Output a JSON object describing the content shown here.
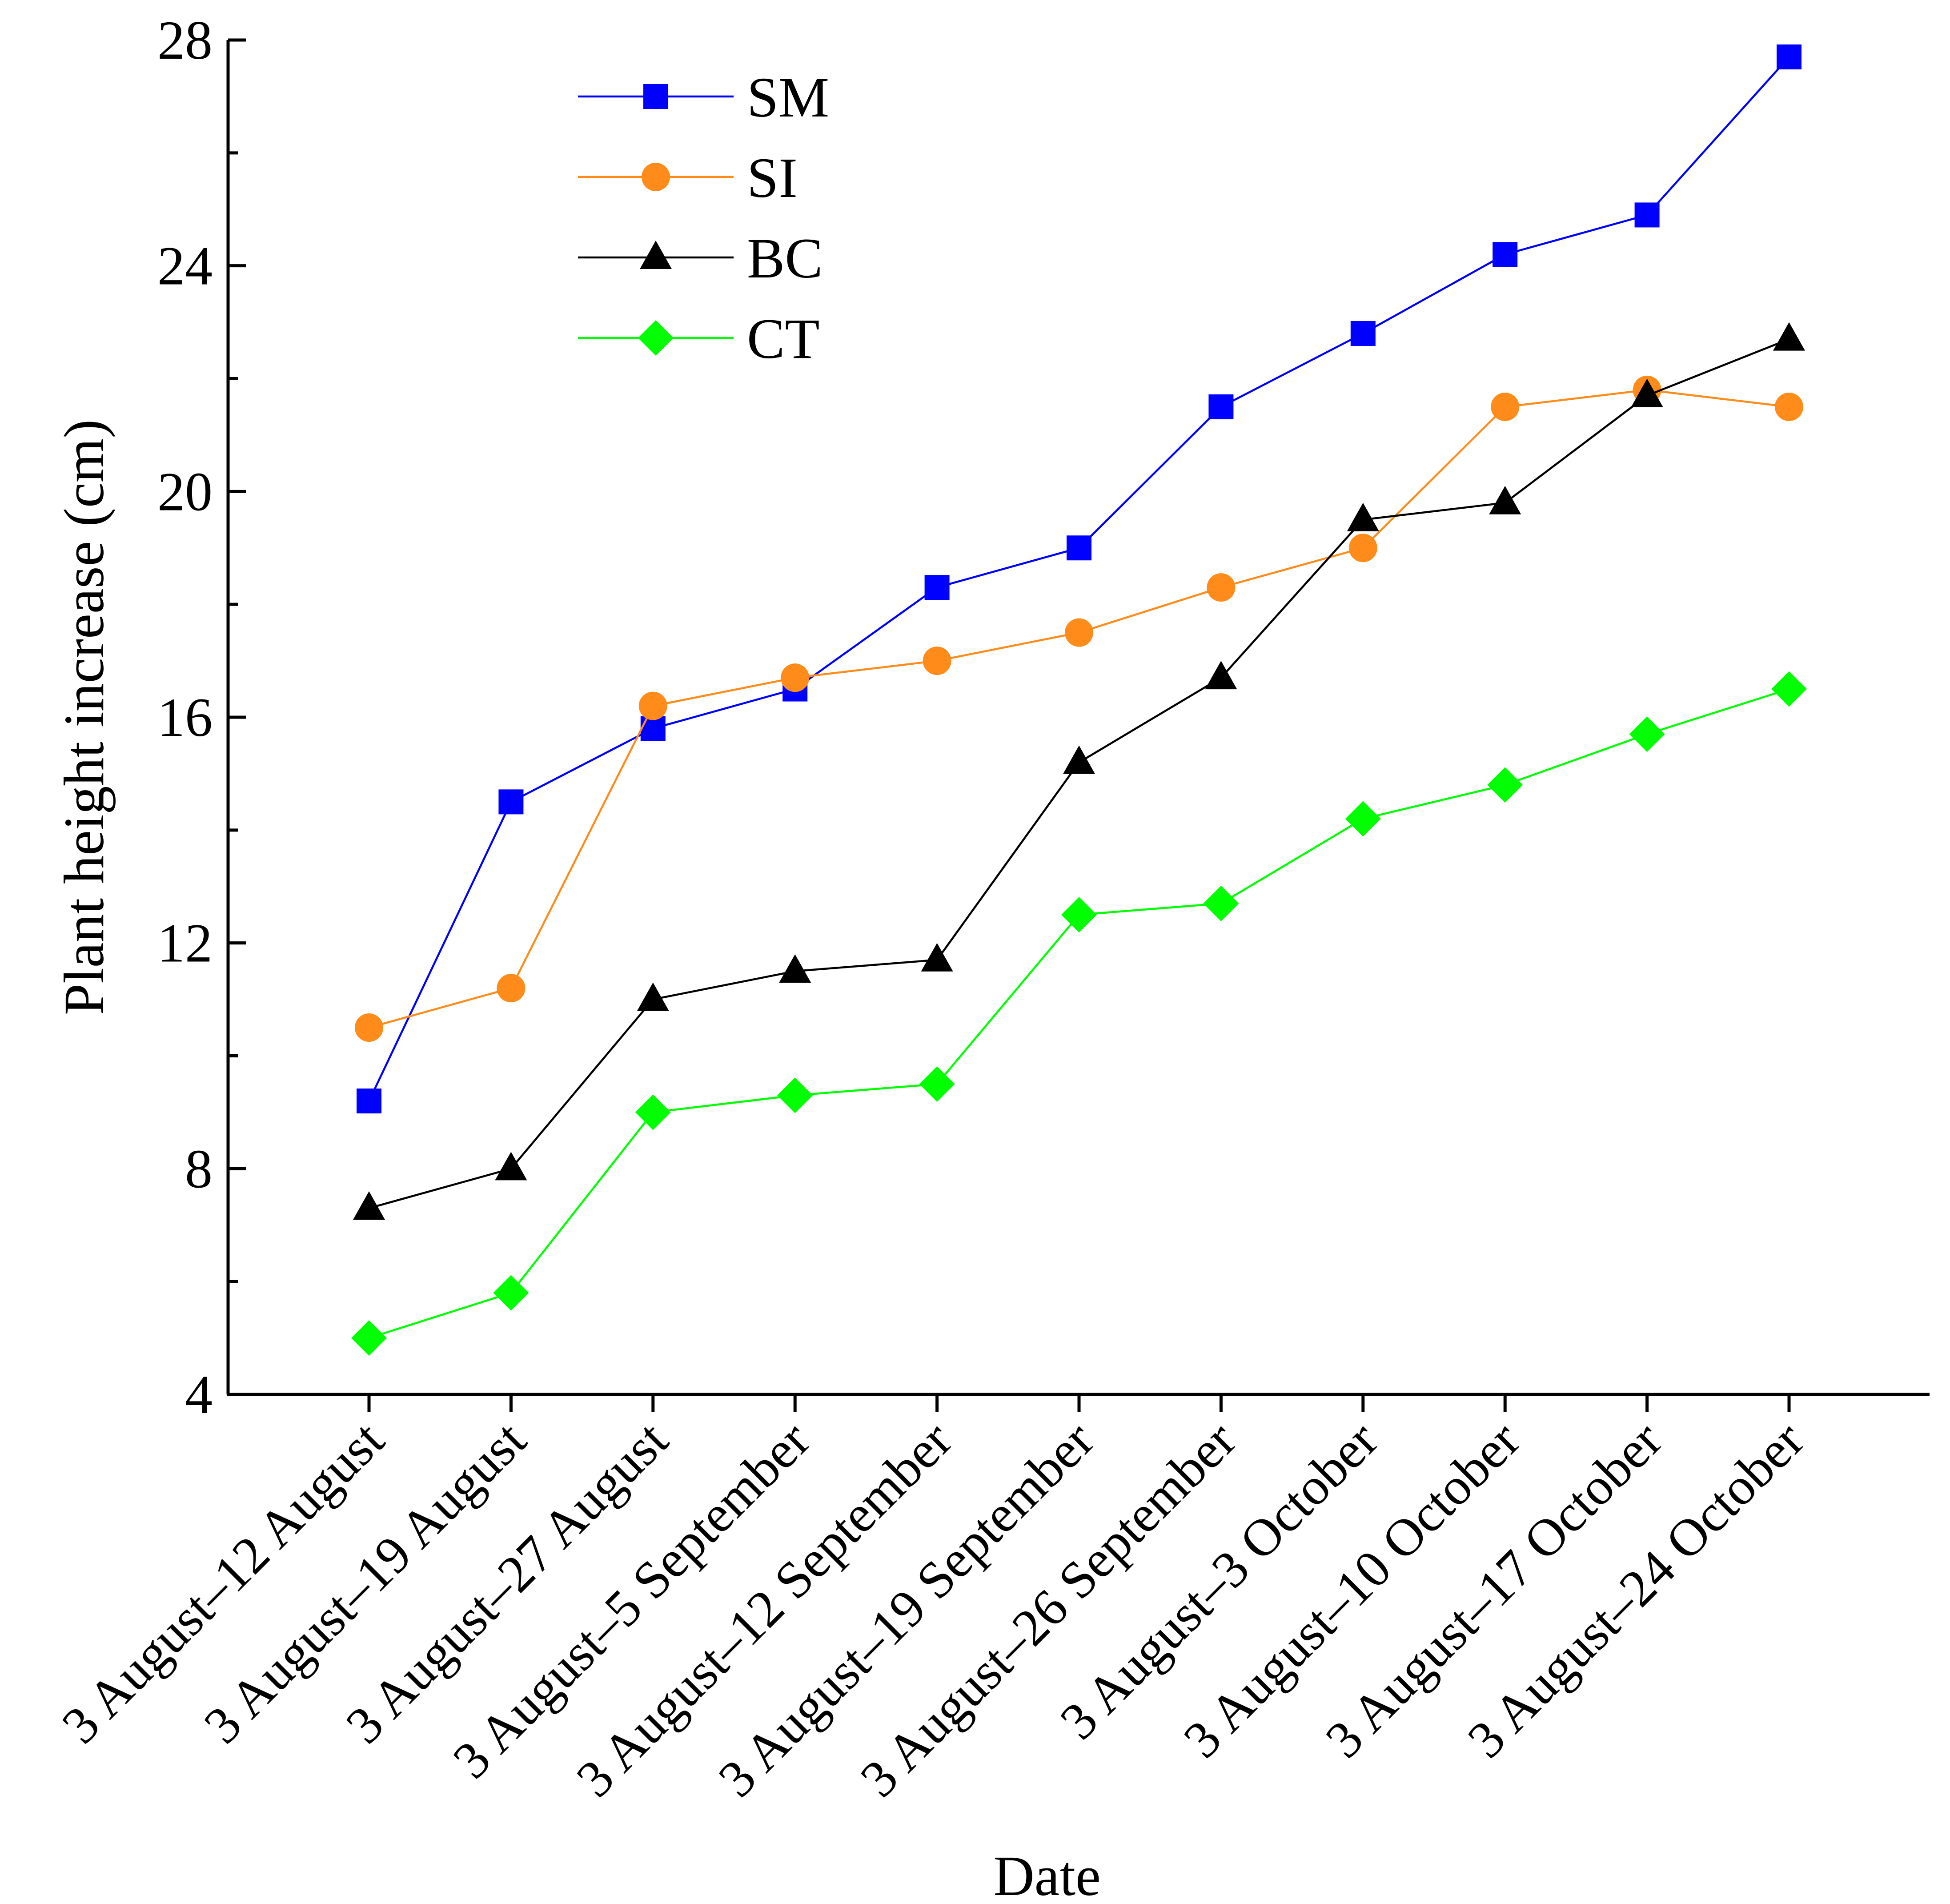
{
  "chart_data": {
    "type": "line",
    "title": "",
    "xlabel": "Date",
    "ylabel": "Plant height increase (cm)",
    "ylim": [
      4,
      28
    ],
    "yticks": [
      4,
      8,
      12,
      16,
      20,
      24,
      28
    ],
    "grid": false,
    "legend_position": "top-left",
    "categories": [
      "3 August–12 August",
      "3 August–19 August",
      "3 August–27 August",
      "3 August–5 September",
      "3 August–12 September",
      "3 August–19 September",
      "3 August–26 September",
      "3 August–3 October",
      "3 August–10 October",
      "3 August–17 October",
      "3 August–24 October"
    ],
    "series": [
      {
        "name": "SM",
        "color": "#0000ff",
        "marker": "square",
        "values": [
          9.2,
          14.5,
          15.8,
          16.5,
          18.3,
          19.0,
          21.5,
          22.8,
          24.2,
          24.9,
          27.7
        ]
      },
      {
        "name": "SI",
        "color": "#ff8c1a",
        "marker": "circle",
        "values": [
          10.5,
          11.2,
          16.2,
          16.7,
          17.0,
          17.5,
          18.3,
          19.0,
          21.5,
          21.8,
          21.5
        ]
      },
      {
        "name": "BC",
        "color": "#000000",
        "marker": "triangle",
        "values": [
          7.3,
          8.0,
          11.0,
          11.5,
          11.7,
          15.2,
          16.7,
          19.5,
          19.8,
          21.7,
          22.7
        ]
      },
      {
        "name": "CT",
        "color": "#00ff00",
        "marker": "diamond",
        "values": [
          5.0,
          5.8,
          9.0,
          9.3,
          9.5,
          12.5,
          12.7,
          14.2,
          14.8,
          15.7,
          16.5
        ]
      }
    ]
  }
}
